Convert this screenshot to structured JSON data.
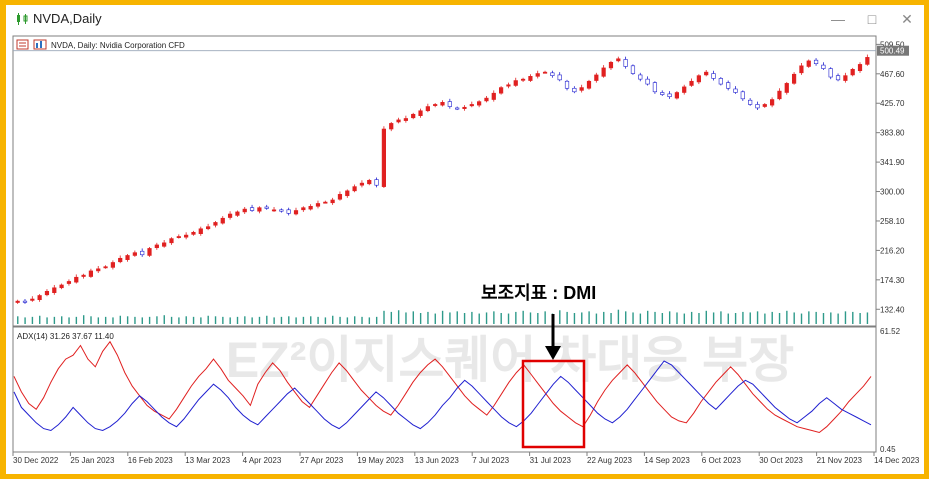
{
  "window": {
    "title": "NVDA,Daily"
  },
  "chart_data": [
    {
      "type": "candlestick",
      "header": "NVDA, Daily:  Nvidia Corporation CFD",
      "price_label": "500.49",
      "ylim": [
        110,
        520
      ],
      "y_ticks": [
        "509.50",
        "467.60",
        "425.70",
        "383.80",
        "341.90",
        "300.00",
        "258.10",
        "216.20",
        "174.30",
        "132.40"
      ],
      "close_series_approx": [
        144,
        143,
        147,
        152,
        158,
        163,
        167,
        172,
        178,
        181,
        187,
        190,
        193,
        199,
        205,
        209,
        213,
        210,
        219,
        224,
        227,
        233,
        236,
        238,
        242,
        247,
        250,
        256,
        262,
        268,
        271,
        275,
        273,
        277,
        276,
        274,
        272,
        269,
        273,
        277,
        279,
        283,
        285,
        288,
        296,
        301,
        307,
        312,
        316,
        309,
        389,
        397,
        402,
        404,
        410,
        415,
        421,
        424,
        427,
        421,
        418,
        420,
        424,
        428,
        433,
        440,
        448,
        452,
        458,
        460,
        464,
        468,
        470,
        465,
        459,
        447,
        442,
        448,
        457,
        466,
        476,
        484,
        489,
        478,
        468,
        460,
        453,
        442,
        438,
        435,
        441,
        449,
        457,
        465,
        470,
        461,
        453,
        447,
        441,
        432,
        424,
        419,
        424,
        431,
        443,
        454,
        467,
        479,
        486,
        482,
        475,
        463,
        459,
        465,
        474,
        481,
        491
      ],
      "volume_bars_approx": [
        14,
        12,
        13,
        15,
        12,
        13,
        14,
        12,
        13,
        16,
        14,
        12,
        13,
        12,
        15,
        14,
        13,
        12,
        13,
        14,
        16,
        13,
        12,
        14,
        13,
        12,
        15,
        14,
        13,
        12,
        13,
        14,
        12,
        13,
        15,
        12,
        13,
        14,
        12,
        13,
        14,
        13,
        12,
        15,
        13,
        12,
        14,
        13,
        12,
        13,
        24,
        22,
        25,
        21,
        23,
        20,
        22,
        19,
        24,
        21,
        23,
        20,
        22,
        19,
        21,
        23,
        20,
        19,
        22,
        24,
        21,
        20,
        23,
        19,
        25,
        22,
        20,
        21,
        23,
        19,
        22,
        20,
        26,
        23,
        21,
        19,
        24,
        22,
        20,
        23,
        21,
        19,
        22,
        20,
        24,
        21,
        23,
        19,
        20,
        22,
        21,
        23,
        19,
        22,
        20,
        24,
        21,
        19,
        23,
        22,
        20,
        21,
        19,
        23,
        22,
        20,
        21
      ]
    },
    {
      "type": "line",
      "header": "ADX(14) 31.26 37.67 11.40",
      "ylim": [
        0.45,
        61.52
      ],
      "y_ticks": [
        "61.52",
        "0.45"
      ],
      "series": [
        {
          "color": "#e02020",
          "values": [
            38,
            30,
            24,
            21,
            27,
            35,
            42,
            47,
            49,
            54,
            47,
            43,
            51,
            56,
            49,
            40,
            33,
            28,
            23,
            20,
            18,
            16,
            21,
            27,
            33,
            38,
            42,
            47,
            42,
            36,
            32,
            28,
            23,
            34,
            40,
            45,
            41,
            35,
            30,
            25,
            22,
            28,
            34,
            40,
            45,
            41,
            36,
            31,
            27,
            23,
            20,
            18,
            23,
            29,
            35,
            40,
            44,
            47,
            43,
            38,
            33,
            28,
            24,
            21,
            18,
            23,
            29,
            35,
            40,
            44,
            39,
            34,
            29,
            24,
            20,
            17,
            14,
            12,
            18,
            25,
            31,
            36,
            40,
            44,
            40,
            35,
            30,
            25,
            21,
            17,
            15,
            14,
            19,
            25,
            30,
            35,
            39,
            43,
            39,
            34,
            29,
            25,
            21,
            18,
            16,
            14,
            12,
            11,
            10,
            9,
            12,
            16,
            20,
            25,
            29,
            33,
            38
          ]
        },
        {
          "color": "#2020d0",
          "values": [
            30,
            22,
            18,
            14,
            11,
            10,
            13,
            17,
            22,
            18,
            14,
            11,
            10,
            12,
            15,
            19,
            24,
            28,
            25,
            21,
            17,
            14,
            12,
            16,
            21,
            26,
            30,
            34,
            31,
            27,
            22,
            18,
            15,
            13,
            17,
            21,
            25,
            29,
            32,
            28,
            24,
            20,
            16,
            13,
            11,
            14,
            18,
            22,
            26,
            30,
            27,
            23,
            19,
            16,
            13,
            11,
            14,
            18,
            23,
            27,
            32,
            36,
            33,
            29,
            25,
            21,
            17,
            14,
            12,
            15,
            19,
            24,
            29,
            34,
            38,
            35,
            31,
            27,
            23,
            19,
            16,
            14,
            17,
            21,
            26,
            31,
            36,
            41,
            46,
            44,
            40,
            36,
            32,
            28,
            24,
            21,
            25,
            29,
            33,
            36,
            34,
            30,
            26,
            22,
            19,
            16,
            14,
            17,
            20,
            24,
            27,
            24,
            21,
            19,
            17,
            15,
            13
          ]
        }
      ]
    }
  ],
  "x_axis": {
    "labels": [
      "30 Dec 2022",
      "25 Jan 2023",
      "16 Feb 2023",
      "13 Mar 2023",
      "4 Apr 2023",
      "27 Apr 2023",
      "19 May 2023",
      "13 Jun 2023",
      "7 Jul 2023",
      "31 Jul 2023",
      "22 Aug 2023",
      "14 Sep 2023",
      "6 Oct 2023",
      "30 Oct 2023",
      "21 Nov 2023",
      "14 Dec 2023"
    ]
  },
  "annotation": {
    "label": "보조지표 : DMI"
  },
  "watermark": {
    "text": "EZ²이지스퀘어 차대응 부장"
  }
}
